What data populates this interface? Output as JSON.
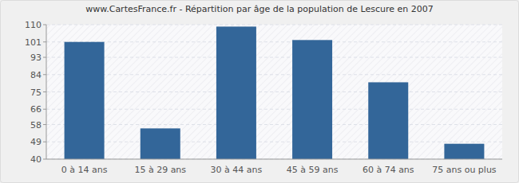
{
  "chart_data": {
    "type": "bar",
    "title": "www.CartesFrance.fr - Répartition par âge de la population de Lescure en 2007",
    "categories": [
      "0 à 14 ans",
      "15 à 29 ans",
      "30 à 44 ans",
      "45 à 59 ans",
      "60 à 74 ans",
      "75 ans ou plus"
    ],
    "values": [
      101,
      56,
      109,
      102,
      80,
      48
    ],
    "color": "#336699",
    "ylim": [
      40,
      110
    ],
    "yticks": [
      40,
      49,
      58,
      66,
      75,
      84,
      93,
      101,
      110
    ],
    "grid": true
  }
}
